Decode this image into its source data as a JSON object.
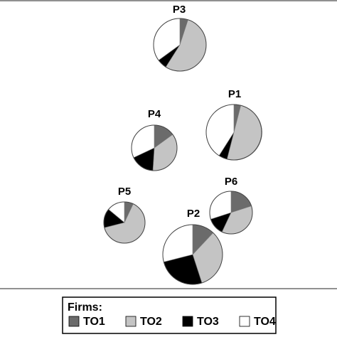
{
  "chart_data": {
    "type": "pie",
    "legend": {
      "title": "Firms:",
      "placement": "bottom",
      "entries": [
        {
          "label": "TO1",
          "color": "#6b6b6b"
        },
        {
          "label": "TO2",
          "color": "#c4c4c4"
        },
        {
          "label": "TO3",
          "color": "#000000"
        },
        {
          "label": "TO4",
          "color": "#ffffff"
        }
      ]
    },
    "categories": [
      "TO1",
      "TO2",
      "TO3",
      "TO4"
    ],
    "pies": [
      {
        "name": "P3",
        "values": [
          5,
          54,
          6,
          35
        ]
      },
      {
        "name": "P1",
        "values": [
          4,
          50,
          5,
          41
        ]
      },
      {
        "name": "P4",
        "values": [
          15,
          36,
          17,
          32
        ]
      },
      {
        "name": "P5",
        "values": [
          7,
          64,
          15,
          14
        ]
      },
      {
        "name": "P6",
        "values": [
          20,
          37,
          13,
          30
        ]
      },
      {
        "name": "P2",
        "values": [
          12,
          33,
          26,
          29
        ]
      }
    ]
  }
}
